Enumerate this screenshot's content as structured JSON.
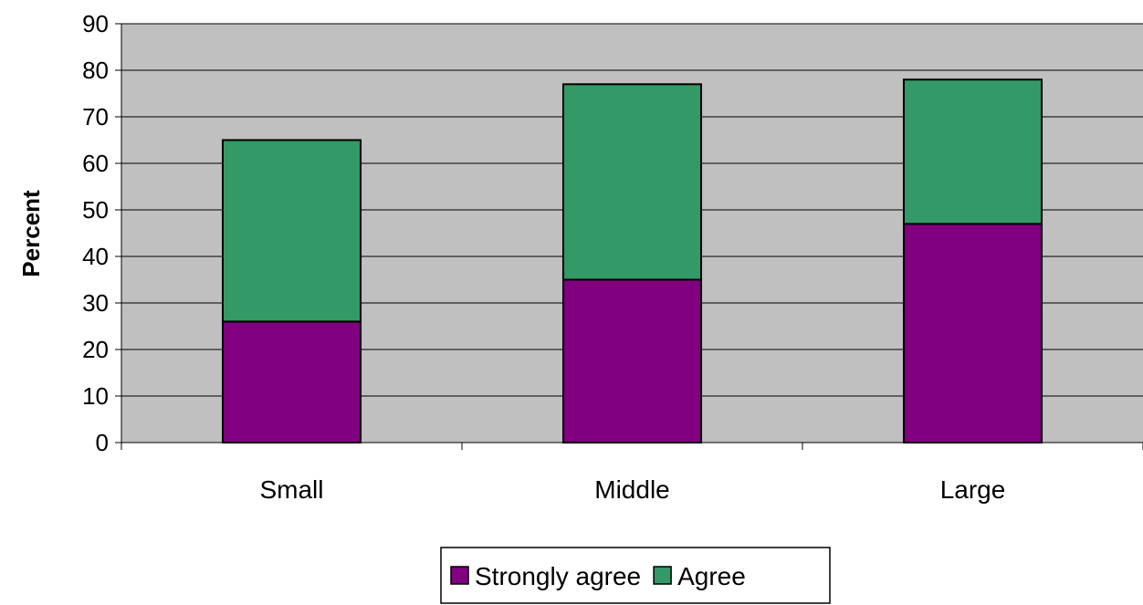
{
  "chart_data": {
    "type": "bar",
    "stacked": true,
    "categories": [
      "Small",
      "Middle",
      "Large"
    ],
    "series": [
      {
        "name": "Strongly agree",
        "values": [
          26,
          35,
          47
        ],
        "color": "#800080"
      },
      {
        "name": "Agree",
        "values": [
          39,
          42,
          31
        ],
        "color": "#339966"
      }
    ],
    "ylabel": "Percent",
    "xlabel": "",
    "ylim": [
      0,
      90
    ],
    "yticks": [
      0,
      10,
      20,
      30,
      40,
      50,
      60,
      70,
      80,
      90
    ],
    "grid": true,
    "plot_background": "#c0c0c0",
    "legend_position": "bottom"
  }
}
